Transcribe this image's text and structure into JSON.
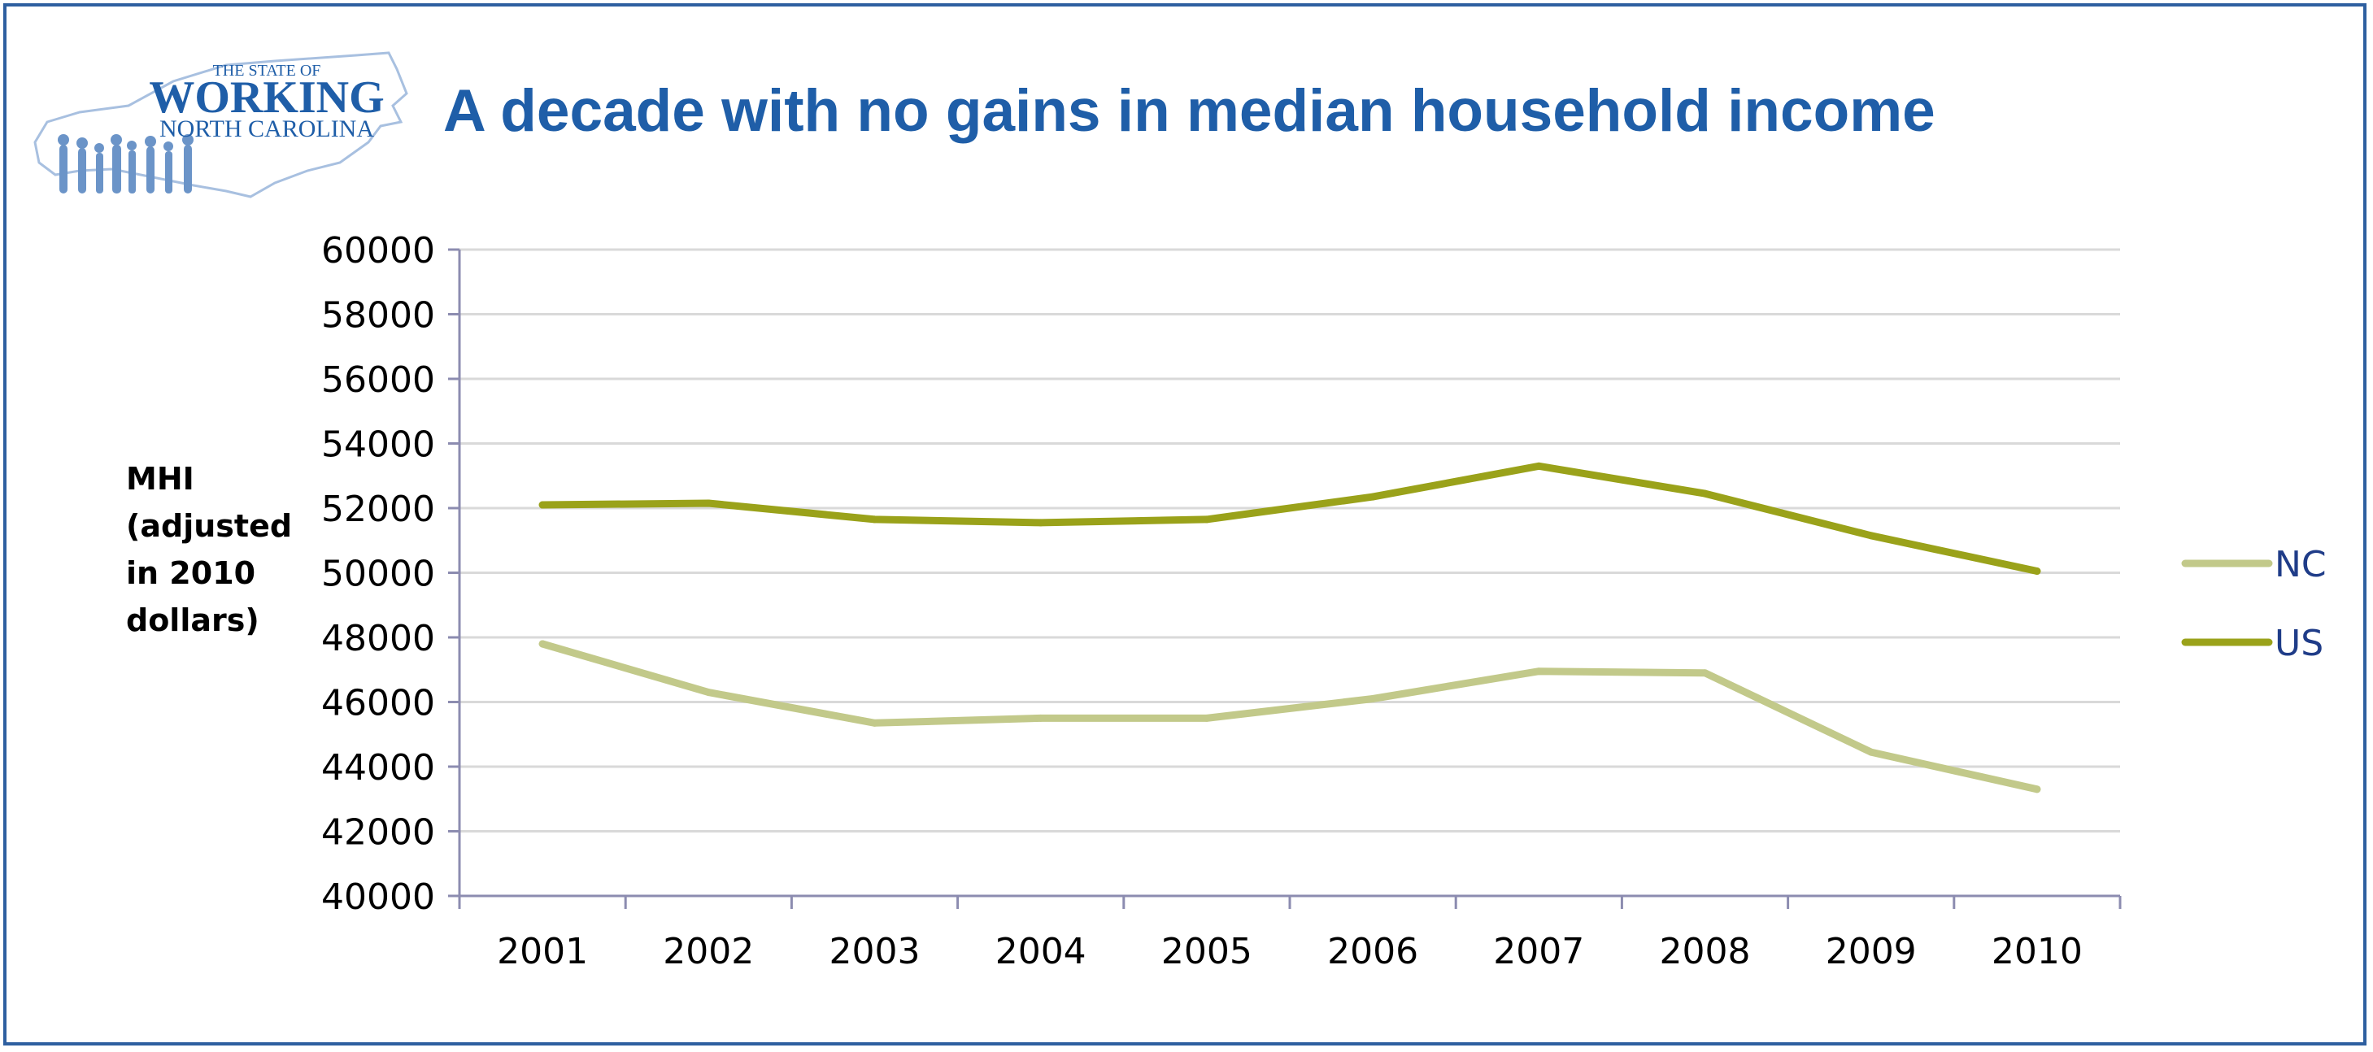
{
  "logo": {
    "line1": "THE STATE OF",
    "line2": "WORKING",
    "line3": "NORTH CAROLINA"
  },
  "title": "A decade with no gains in median household income",
  "chart_data": {
    "type": "line",
    "title": "A decade with no gains in median household income",
    "ylabel": [
      "MHI",
      "(adjusted",
      "in 2010",
      "dollars)"
    ],
    "xlabel": "",
    "categories": [
      "2001",
      "2002",
      "2003",
      "2004",
      "2005",
      "2006",
      "2007",
      "2008",
      "2009",
      "2010"
    ],
    "ylim": [
      40000,
      60000
    ],
    "yticks": [
      40000,
      42000,
      44000,
      46000,
      48000,
      50000,
      52000,
      54000,
      56000,
      58000,
      60000
    ],
    "grid": true,
    "legend_position": "right",
    "series": [
      {
        "name": "NC",
        "color": "#c2c98a",
        "values": [
          47800,
          46300,
          45350,
          45500,
          45500,
          46100,
          46950,
          46900,
          44450,
          43300
        ]
      },
      {
        "name": "US",
        "color": "#9aa21a",
        "values": [
          52100,
          52150,
          51650,
          51550,
          51650,
          52350,
          53300,
          52450,
          51150,
          50050
        ]
      }
    ]
  }
}
